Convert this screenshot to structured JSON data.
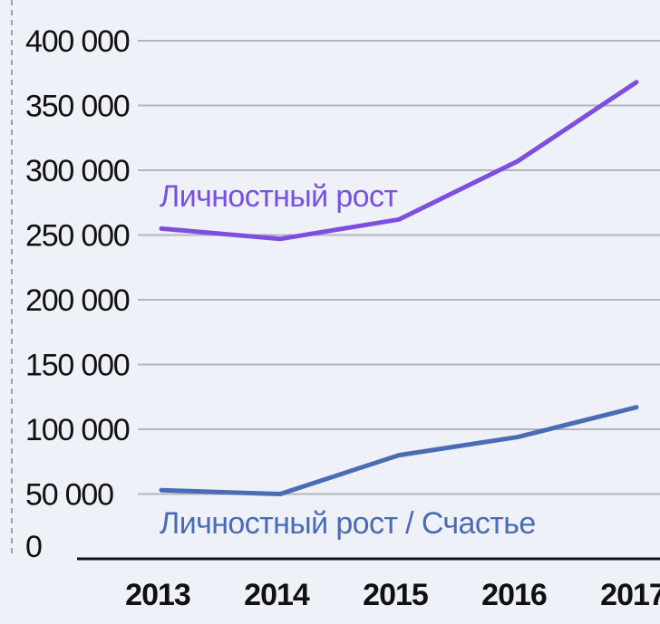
{
  "chart_data": {
    "type": "line",
    "x": [
      "2013",
      "2014",
      "2015",
      "2016",
      "2017"
    ],
    "y_ticks": [
      "0",
      "50 000",
      "100 000",
      "150 000",
      "200 000",
      "250 000",
      "300 000",
      "350 000",
      "400 000"
    ],
    "ylim": [
      0,
      400000
    ],
    "grid": true,
    "legend": "inline labels",
    "series": [
      {
        "name": "Личностный рост",
        "color": "#7c4fe0",
        "values": [
          255000,
          247000,
          262000,
          307000,
          368000
        ]
      },
      {
        "name": "Личностный рост / Счастье",
        "color": "#4a6cb5",
        "values": [
          53000,
          50000,
          80000,
          94000,
          117000
        ]
      }
    ]
  },
  "colors": {
    "background": "#eef1f8",
    "grid": "#b4b6bd",
    "axis": "#111111",
    "left_border": "#9aa0ab"
  }
}
